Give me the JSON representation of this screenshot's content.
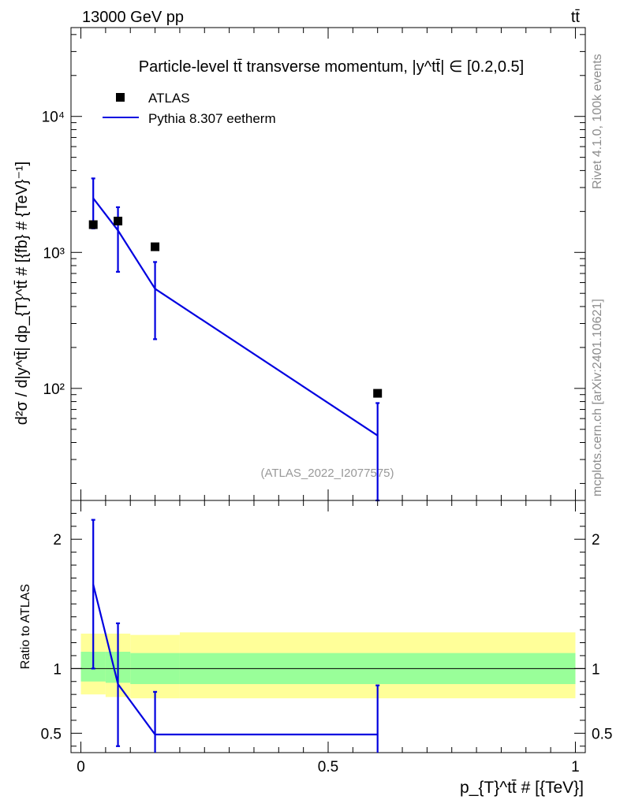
{
  "header": {
    "left": "13000 GeV pp",
    "right": "tt̄"
  },
  "side_labels": {
    "rivet": "Rivet 4.1.0,  100k events",
    "mcplots": "mcplots.cern.ch [arXiv:2401.10621]"
  },
  "chart_data": {
    "type": "line",
    "title": "Particle-level tt̄ transverse momentum, |y^tt̄| ∈ [0.2,0.5]",
    "analysis_tag": "(ATLAS_2022_I2077575)",
    "xlabel": "p_{T}^tt̄ # [{TeV}]",
    "ylabel": "d²σ / d|y^tt̄| dp_{T}^tt̄ # [{fb} # {TeV}⁻¹]",
    "ratio_ylabel": "Ratio to ATLAS",
    "xlim": [
      -0.02,
      1.02
    ],
    "ylim": [
      15,
      45000
    ],
    "yscale": "log",
    "ratio_ylim": [
      0.35,
      2.3
    ],
    "legend_position": "top-left",
    "x_ticks": [
      {
        "value": 0,
        "label": "0"
      },
      {
        "value": 0.5,
        "label": "0.5"
      },
      {
        "value": 1,
        "label": "1"
      }
    ],
    "y_ticks": [
      {
        "value": 100,
        "label": "10²"
      },
      {
        "value": 1000,
        "label": "10³"
      },
      {
        "value": 10000,
        "label": "10⁴"
      }
    ],
    "ratio_ticks": [
      {
        "value": 0.5,
        "label": "0.5"
      },
      {
        "value": 1,
        "label": "1"
      },
      {
        "value": 2,
        "label": "2"
      }
    ],
    "bins": [
      [
        0,
        0.05
      ],
      [
        0.05,
        0.1
      ],
      [
        0.1,
        0.2
      ],
      [
        0.2,
        1.0
      ]
    ],
    "series": [
      {
        "name": "ATLAS",
        "kind": "data",
        "color": "#000000",
        "x": [
          0.025,
          0.075,
          0.15,
          0.6
        ],
        "y": [
          1600,
          1700,
          1100,
          92
        ]
      },
      {
        "name": "Pythia 8.307 eetherm",
        "kind": "mc",
        "color": "#0000e0",
        "x": [
          0.025,
          0.075,
          0.15,
          0.6
        ],
        "y": [
          2500,
          1450,
          540,
          45
        ],
        "yerr_low": [
          1500,
          720,
          230,
          15
        ],
        "yerr_high": [
          3500,
          2150,
          850,
          78
        ],
        "ratio": [
          1.65,
          0.88,
          0.49,
          0.49
        ],
        "ratio_err_low": [
          1.0,
          0.4,
          0.3,
          0.3
        ],
        "ratio_err_high": [
          2.15,
          1.35,
          0.82,
          0.87
        ]
      }
    ],
    "uncertainty_bands": {
      "inner_color": "#99ff99",
      "outer_color": "#ffff99",
      "inner_low": [
        0.9,
        0.89,
        0.88,
        0.88
      ],
      "inner_high": [
        1.13,
        1.13,
        1.12,
        1.12
      ],
      "outer_low": [
        0.8,
        0.78,
        0.77,
        0.77
      ],
      "outer_high": [
        1.27,
        1.27,
        1.26,
        1.28
      ]
    }
  }
}
